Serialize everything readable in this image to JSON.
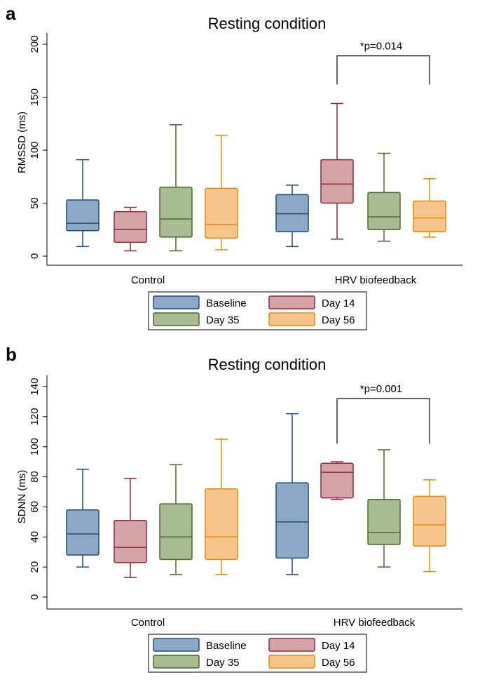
{
  "colors": {
    "series_fill": [
      "#8ea9c7",
      "#d3a3a8",
      "#a8bb93",
      "#f6c48a"
    ],
    "series_stroke": [
      "#1f4e79",
      "#8b2c3f",
      "#4a6b2a",
      "#e08c0e"
    ]
  },
  "chart_data": [
    {
      "panel_label": "a",
      "type": "box",
      "title": "Resting condition",
      "ylabel": "RMSSD (ms)",
      "ylim": [
        0,
        200
      ],
      "yticks": [
        0,
        50,
        100,
        150,
        200
      ],
      "groups": [
        "Control",
        "HRV biofeedback"
      ],
      "series": [
        {
          "name": "Baseline",
          "boxes": [
            {
              "min": 9,
              "q1": 24,
              "median": 31,
              "q3": 53,
              "max": 91
            },
            {
              "min": 9,
              "q1": 23,
              "median": 40,
              "q3": 58,
              "max": 67
            }
          ]
        },
        {
          "name": "Day 14",
          "boxes": [
            {
              "min": 5,
              "q1": 13,
              "median": 25,
              "q3": 42,
              "max": 46
            },
            {
              "min": 16,
              "q1": 50,
              "median": 68,
              "q3": 91,
              "max": 144
            }
          ]
        },
        {
          "name": "Day 35",
          "boxes": [
            {
              "min": 5,
              "q1": 18,
              "median": 35,
              "q3": 65,
              "max": 124
            },
            {
              "min": 14,
              "q1": 25,
              "median": 37,
              "q3": 60,
              "max": 97
            }
          ]
        },
        {
          "name": "Day 56",
          "boxes": [
            {
              "min": 6,
              "q1": 17,
              "median": 30,
              "q3": 64,
              "max": 114
            },
            {
              "min": 18,
              "q1": 23,
              "median": 36,
              "q3": 52,
              "max": 73
            }
          ]
        }
      ],
      "annotation": {
        "text": "*p=0.014",
        "group": 1,
        "from_series": 1,
        "to_series": 3,
        "bar_y": 189,
        "drop_y": 162
      }
    },
    {
      "panel_label": "b",
      "type": "box",
      "title": "Resting condition",
      "ylabel": "SDNN (ms)",
      "ylim": [
        0,
        140
      ],
      "yticks": [
        0,
        20,
        40,
        60,
        80,
        100,
        120,
        140
      ],
      "groups": [
        "Control",
        "HRV biofeedback"
      ],
      "series": [
        {
          "name": "Baseline",
          "boxes": [
            {
              "min": 20,
              "q1": 28,
              "median": 42,
              "q3": 58,
              "max": 85
            },
            {
              "min": 15,
              "q1": 26,
              "median": 50,
              "q3": 76,
              "max": 122
            }
          ]
        },
        {
          "name": "Day 14",
          "boxes": [
            {
              "min": 13,
              "q1": 23,
              "median": 33,
              "q3": 51,
              "max": 79
            },
            {
              "min": 65,
              "q1": 66,
              "median": 83,
              "q3": 89,
              "max": 90
            }
          ]
        },
        {
          "name": "Day 35",
          "boxes": [
            {
              "min": 15,
              "q1": 25,
              "median": 40,
              "q3": 62,
              "max": 88
            },
            {
              "min": 20,
              "q1": 35,
              "median": 43,
              "q3": 65,
              "max": 98
            }
          ]
        },
        {
          "name": "Day 56",
          "boxes": [
            {
              "min": 15,
              "q1": 25,
              "median": 40,
              "q3": 72,
              "max": 105
            },
            {
              "min": 17,
              "q1": 34,
              "median": 48,
              "q3": 67,
              "max": 78
            }
          ]
        }
      ],
      "annotation": {
        "text": "*p=0.001",
        "group": 1,
        "from_series": 1,
        "to_series": 3,
        "bar_y": 132,
        "drop_y": 102
      }
    }
  ]
}
